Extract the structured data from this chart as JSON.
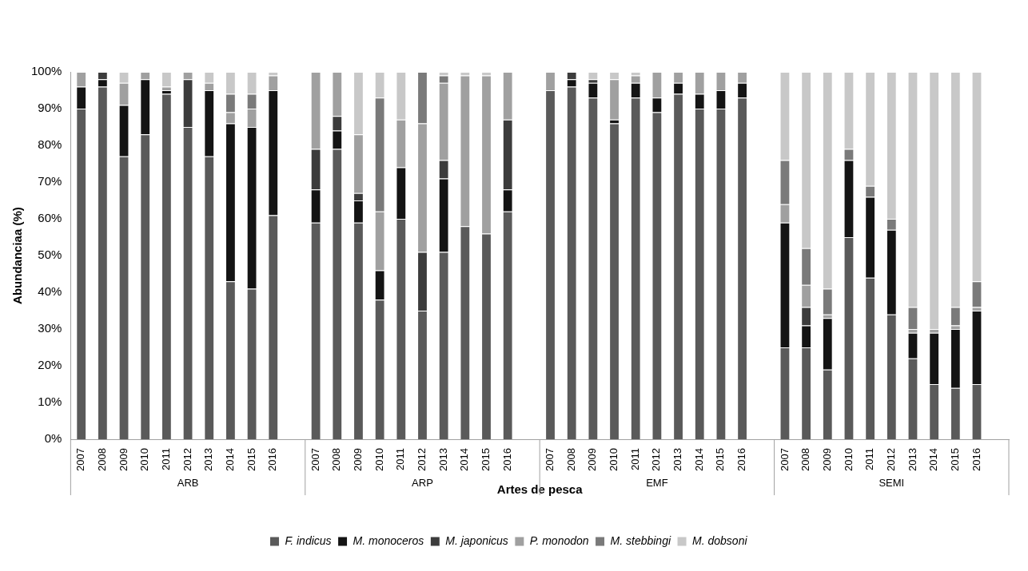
{
  "chart_data": {
    "type": "bar",
    "stacked": true,
    "xlabel": "Artes de pesca",
    "ylabel": "Abundanciaa (%)",
    "categories": [
      "2007",
      "2008",
      "2009",
      "2010",
      "2011",
      "2012",
      "2013",
      "2014",
      "2015",
      "2016",
      null,
      "2007",
      "2008",
      "2009",
      "2010",
      "2011",
      "2012",
      "2013",
      "2014",
      "2015",
      "2016",
      null,
      "2007",
      "2008",
      "2009",
      "2010",
      "2011",
      "2012",
      "2013",
      "2014",
      "2015",
      "2016",
      null,
      "2007",
      "2008",
      "2009",
      "2010",
      "2011",
      "2012",
      "2013",
      "2014",
      "2015",
      "2016",
      null
    ],
    "series": [
      {
        "name": "F. indicus",
        "color": "#5a5a5a",
        "values": [
          90,
          96,
          77,
          83,
          94,
          85,
          77,
          43,
          41,
          61,
          null,
          59,
          79,
          59,
          38,
          60,
          35,
          51,
          58,
          56,
          62,
          null,
          95,
          96,
          93,
          86,
          93,
          89,
          94,
          90,
          90,
          93,
          null,
          25,
          25,
          19,
          55,
          44,
          34,
          22,
          15,
          14,
          15,
          null
        ]
      },
      {
        "name": "M. monoceros",
        "color": "#141414",
        "values": [
          6,
          2,
          14,
          15,
          1,
          0,
          18,
          43,
          44,
          34,
          null,
          9,
          5,
          6,
          8,
          14,
          0,
          20,
          0,
          0,
          6,
          null,
          0,
          2,
          4,
          1,
          4,
          4,
          3,
          4,
          5,
          4,
          null,
          34,
          6,
          14,
          21,
          22,
          23,
          7,
          14,
          16,
          20,
          null
        ]
      },
      {
        "name": "M. japonicus",
        "color": "#3c3c3c",
        "values": [
          0,
          2,
          0,
          0,
          0,
          13,
          0,
          0,
          0,
          0,
          null,
          11,
          4,
          2,
          0,
          0,
          16,
          5,
          0,
          0,
          19,
          null,
          0,
          2,
          1,
          0,
          0,
          0,
          0,
          0,
          0,
          0,
          null,
          0,
          5,
          0,
          0,
          0,
          0,
          0,
          0,
          0,
          0,
          null
        ]
      },
      {
        "name": "P. monodon",
        "color": "#a0a0a0",
        "values": [
          4,
          0,
          6,
          2,
          1,
          2,
          2,
          3,
          5,
          4,
          null,
          21,
          12,
          16,
          16,
          13,
          35,
          21,
          41,
          43,
          13,
          null,
          5,
          0,
          0,
          11,
          2,
          7,
          3,
          6,
          5,
          3,
          null,
          5,
          6,
          1,
          0,
          0,
          0,
          1,
          1,
          1,
          1,
          null
        ]
      },
      {
        "name": "M. stebbingi",
        "color": "#7a7a7a",
        "values": [
          0,
          0,
          0,
          0,
          0,
          0,
          0,
          5,
          4,
          0,
          null,
          0,
          0,
          0,
          31,
          0,
          14,
          2,
          0,
          0,
          0,
          null,
          0,
          0,
          0,
          0,
          0,
          0,
          0,
          0,
          0,
          0,
          null,
          12,
          10,
          7,
          3,
          3,
          3,
          6,
          0,
          5,
          7,
          null
        ]
      },
      {
        "name": "M. dobsoni",
        "color": "#c8c8c8",
        "values": [
          0,
          0,
          3,
          0,
          4,
          0,
          3,
          6,
          6,
          1,
          null,
          0,
          0,
          17,
          7,
          13,
          0,
          1,
          1,
          1,
          0,
          null,
          0,
          0,
          2,
          2,
          1,
          0,
          0,
          0,
          0,
          0,
          null,
          24,
          48,
          59,
          21,
          31,
          40,
          64,
          70,
          64,
          57,
          null
        ]
      }
    ],
    "annotations": [
      "ARB",
      "ARP",
      "EMF",
      "SEMI"
    ],
    "ylim": [
      0,
      100
    ],
    "yticks": [
      {
        "value": 0,
        "label": "0%"
      },
      {
        "value": 10,
        "label": "10%"
      },
      {
        "value": 20,
        "label": "20%"
      },
      {
        "value": 30,
        "label": "30%"
      },
      {
        "value": 40,
        "label": "40%"
      },
      {
        "value": 50,
        "label": "50%"
      },
      {
        "value": 60,
        "label": "60%"
      },
      {
        "value": 70,
        "label": "70%"
      },
      {
        "value": 80,
        "label": "80%"
      },
      {
        "value": 90,
        "label": "90%"
      },
      {
        "value": 100,
        "label": "100%"
      }
    ],
    "grid": false,
    "legend": "bottom"
  }
}
